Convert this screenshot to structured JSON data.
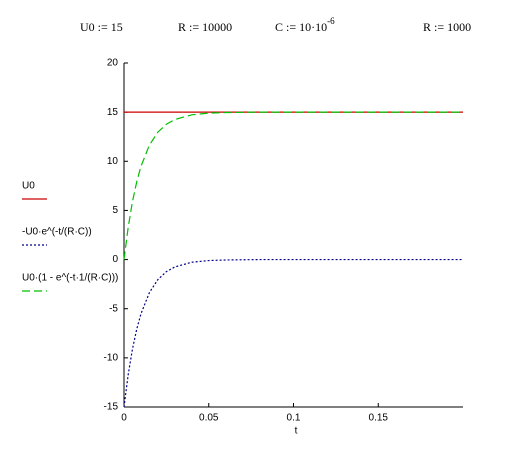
{
  "definitions": [
    "U0 := 15",
    "R := 10000",
    {
      "base": "C := 10·10",
      "exponent": "-6"
    },
    "R := 1000"
  ],
  "chart_data": {
    "type": "line",
    "x_label": "t",
    "x": [
      0,
      0.0025,
      0.005,
      0.0075,
      0.01,
      0.015,
      0.02,
      0.025,
      0.03,
      0.04,
      0.05,
      0.06,
      0.08,
      0.1,
      0.15,
      0.2
    ],
    "series": [
      {
        "name": "U0",
        "color": "#cc0000",
        "dash": "none",
        "values": [
          15,
          15,
          15,
          15,
          15,
          15,
          15,
          15,
          15,
          15,
          15,
          15,
          15,
          15,
          15,
          15
        ]
      },
      {
        "name": "-U0·e^(-t/(R·C))",
        "color": "#00008b",
        "dash": "2 2",
        "values": [
          -15,
          -11.68,
          -9.1,
          -7.09,
          -5.52,
          -3.35,
          -2.03,
          -1.23,
          -0.75,
          -0.27,
          -0.1,
          -0.04,
          0,
          0,
          0,
          0
        ]
      },
      {
        "name": "U0·(1 - e^(-t·1/(R·C)))",
        "color": "#00c000",
        "dash": "8 4",
        "values": [
          0,
          3.32,
          5.9,
          7.91,
          9.48,
          11.65,
          12.97,
          13.77,
          14.25,
          14.73,
          14.9,
          14.96,
          15,
          15,
          15,
          15
        ]
      }
    ],
    "xlim": [
      0,
      0.2
    ],
    "ylim": [
      -15,
      20
    ],
    "xticks": [
      0,
      0.05,
      0.1,
      0.15
    ],
    "yticks": [
      -15,
      -10,
      -5,
      0,
      5,
      10,
      15,
      20
    ]
  }
}
